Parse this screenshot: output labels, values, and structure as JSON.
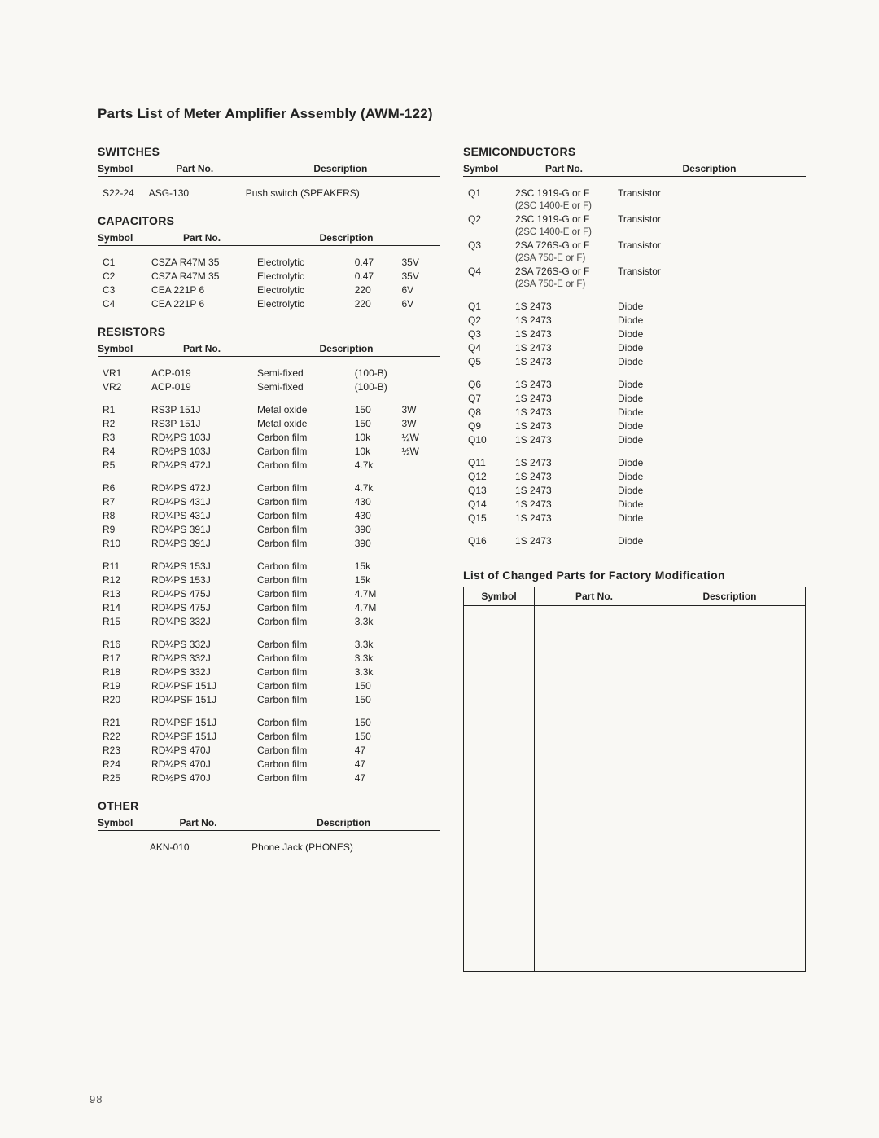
{
  "title": "Parts List of Meter Amplifier Assembly (AWM-122)",
  "pageNumber": "98",
  "headers": {
    "symbol": "Symbol",
    "partNo": "Part No.",
    "description": "Description"
  },
  "left": {
    "switches": {
      "heading": "SWITCHES",
      "rows": [
        {
          "sym": "S22-24",
          "pn": "ASG-130",
          "desc": [
            "Push switch (SPEAKERS)",
            "",
            ""
          ]
        }
      ]
    },
    "capacitors": {
      "heading": "CAPACITORS",
      "rows": [
        {
          "sym": "C1",
          "pn": "CSZA R47M 35",
          "desc": [
            "Electrolytic",
            "0.47",
            "35V"
          ]
        },
        {
          "sym": "C2",
          "pn": "CSZA R47M 35",
          "desc": [
            "Electrolytic",
            "0.47",
            "35V"
          ]
        },
        {
          "sym": "C3",
          "pn": "CEA 221P 6",
          "desc": [
            "Electrolytic",
            "220",
            "6V"
          ]
        },
        {
          "sym": "C4",
          "pn": "CEA 221P 6",
          "desc": [
            "Electrolytic",
            "220",
            "6V"
          ]
        }
      ]
    },
    "resistors": {
      "heading": "RESISTORS",
      "groups": [
        [
          {
            "sym": "VR1",
            "pn": "ACP-019",
            "desc": [
              "Semi-fixed",
              "(100-B)",
              ""
            ]
          },
          {
            "sym": "VR2",
            "pn": "ACP-019",
            "desc": [
              "Semi-fixed",
              "(100-B)",
              ""
            ]
          }
        ],
        [
          {
            "sym": "R1",
            "pn": "RS3P 151J",
            "desc": [
              "Metal oxide",
              "150",
              "3W"
            ]
          },
          {
            "sym": "R2",
            "pn": "RS3P 151J",
            "desc": [
              "Metal oxide",
              "150",
              "3W"
            ]
          },
          {
            "sym": "R3",
            "pn": "RD½PS 103J",
            "desc": [
              "Carbon film",
              "10k",
              "½W"
            ]
          },
          {
            "sym": "R4",
            "pn": "RD½PS 103J",
            "desc": [
              "Carbon film",
              "10k",
              "½W"
            ]
          },
          {
            "sym": "R5",
            "pn": "RD¼PS 472J",
            "desc": [
              "Carbon film",
              "4.7k",
              ""
            ]
          }
        ],
        [
          {
            "sym": "R6",
            "pn": "RD¼PS 472J",
            "desc": [
              "Carbon film",
              "4.7k",
              ""
            ]
          },
          {
            "sym": "R7",
            "pn": "RD¼PS 431J",
            "desc": [
              "Carbon film",
              "430",
              ""
            ]
          },
          {
            "sym": "R8",
            "pn": "RD¼PS 431J",
            "desc": [
              "Carbon film",
              "430",
              ""
            ]
          },
          {
            "sym": "R9",
            "pn": "RD¼PS 391J",
            "desc": [
              "Carbon film",
              "390",
              ""
            ]
          },
          {
            "sym": "R10",
            "pn": "RD¼PS 391J",
            "desc": [
              "Carbon film",
              "390",
              ""
            ]
          }
        ],
        [
          {
            "sym": "R11",
            "pn": "RD¼PS 153J",
            "desc": [
              "Carbon film",
              "15k",
              ""
            ]
          },
          {
            "sym": "R12",
            "pn": "RD¼PS 153J",
            "desc": [
              "Carbon film",
              "15k",
              ""
            ]
          },
          {
            "sym": "R13",
            "pn": "RD¼PS 475J",
            "desc": [
              "Carbon film",
              "4.7M",
              ""
            ]
          },
          {
            "sym": "R14",
            "pn": "RD¼PS 475J",
            "desc": [
              "Carbon film",
              "4.7M",
              ""
            ]
          },
          {
            "sym": "R15",
            "pn": "RD¼PS 332J",
            "desc": [
              "Carbon film",
              "3.3k",
              ""
            ]
          }
        ],
        [
          {
            "sym": "R16",
            "pn": "RD¼PS 332J",
            "desc": [
              "Carbon film",
              "3.3k",
              ""
            ]
          },
          {
            "sym": "R17",
            "pn": "RD¼PS 332J",
            "desc": [
              "Carbon film",
              "3.3k",
              ""
            ]
          },
          {
            "sym": "R18",
            "pn": "RD¼PS 332J",
            "desc": [
              "Carbon film",
              "3.3k",
              ""
            ]
          },
          {
            "sym": "R19",
            "pn": "RD¼PSF 151J",
            "desc": [
              "Carbon film",
              "150",
              ""
            ]
          },
          {
            "sym": "R20",
            "pn": "RD¼PSF 151J",
            "desc": [
              "Carbon film",
              "150",
              ""
            ]
          }
        ],
        [
          {
            "sym": "R21",
            "pn": "RD¼PSF 151J",
            "desc": [
              "Carbon film",
              "150",
              ""
            ]
          },
          {
            "sym": "R22",
            "pn": "RD¼PSF 151J",
            "desc": [
              "Carbon film",
              "150",
              ""
            ]
          },
          {
            "sym": "R23",
            "pn": "RD¼PS 470J",
            "desc": [
              "Carbon film",
              "47",
              ""
            ]
          },
          {
            "sym": "R24",
            "pn": "RD¼PS 470J",
            "desc": [
              "Carbon film",
              "47",
              ""
            ]
          },
          {
            "sym": "R25",
            "pn": "RD½PS 470J",
            "desc": [
              "Carbon film",
              "47",
              ""
            ]
          }
        ]
      ]
    },
    "other": {
      "heading": "OTHER",
      "rows": [
        {
          "sym": "",
          "pn": "AKN-010",
          "desc": [
            "Phone Jack (PHONES)",
            "",
            ""
          ]
        }
      ]
    }
  },
  "right": {
    "semiconductors": {
      "heading": "SEMICONDUCTORS",
      "transistors": [
        {
          "sym": "Q1",
          "pn": "2SC 1919-G or F",
          "alt": "(2SC 1400-E or F)",
          "desc": "Transistor"
        },
        {
          "sym": "Q2",
          "pn": "2SC 1919-G or F",
          "alt": "(2SC 1400-E or F)",
          "desc": "Transistor"
        },
        {
          "sym": "Q3",
          "pn": "2SA 726S-G or F",
          "alt": "(2SA 750-E or F)",
          "desc": "Transistor"
        },
        {
          "sym": "Q4",
          "pn": "2SA 726S-G or F",
          "alt": "(2SA 750-E or F)",
          "desc": "Transistor"
        }
      ],
      "diodeGroups": [
        [
          {
            "sym": "Q1",
            "pn": "1S 2473",
            "desc": "Diode"
          },
          {
            "sym": "Q2",
            "pn": "1S 2473",
            "desc": "Diode"
          },
          {
            "sym": "Q3",
            "pn": "1S 2473",
            "desc": "Diode"
          },
          {
            "sym": "Q4",
            "pn": "1S 2473",
            "desc": "Diode"
          },
          {
            "sym": "Q5",
            "pn": "1S 2473",
            "desc": "Diode"
          }
        ],
        [
          {
            "sym": "Q6",
            "pn": "1S 2473",
            "desc": "Diode"
          },
          {
            "sym": "Q7",
            "pn": "1S 2473",
            "desc": "Diode"
          },
          {
            "sym": "Q8",
            "pn": "1S 2473",
            "desc": "Diode"
          },
          {
            "sym": "Q9",
            "pn": "1S 2473",
            "desc": "Diode"
          },
          {
            "sym": "Q10",
            "pn": "1S 2473",
            "desc": "Diode"
          }
        ],
        [
          {
            "sym": "Q11",
            "pn": "1S 2473",
            "desc": "Diode"
          },
          {
            "sym": "Q12",
            "pn": "1S 2473",
            "desc": "Diode"
          },
          {
            "sym": "Q13",
            "pn": "1S 2473",
            "desc": "Diode"
          },
          {
            "sym": "Q14",
            "pn": "1S 2473",
            "desc": "Diode"
          },
          {
            "sym": "Q15",
            "pn": "1S 2473",
            "desc": "Diode"
          }
        ],
        [
          {
            "sym": "Q16",
            "pn": "1S 2473",
            "desc": "Diode"
          }
        ]
      ]
    },
    "changedParts": {
      "heading": "List of Changed Parts for Factory Modification"
    }
  }
}
